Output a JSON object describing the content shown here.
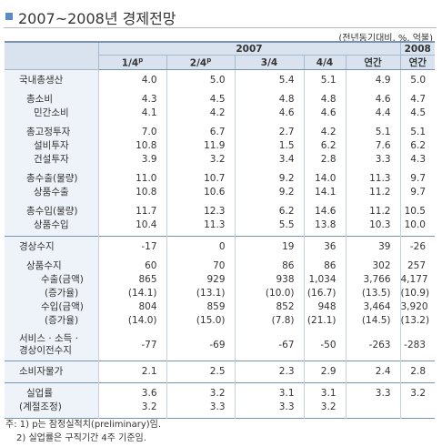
{
  "title": "2007~2008년 경제전망",
  "unit": "(전년동기대비, %, 억불)",
  "header": {
    "years": [
      "2007",
      "2008"
    ],
    "columns": [
      {
        "label": "1/4",
        "mark": "p"
      },
      {
        "label": "2/4",
        "mark": "p"
      },
      {
        "label": "3/4"
      },
      {
        "label": "4/4"
      },
      {
        "label": "연간"
      },
      {
        "label": "연간"
      }
    ]
  },
  "sections": [
    {
      "groups": [
        {
          "rows": [
            {
              "label": "국내총생산",
              "values": [
                "4.0",
                "5.0",
                "5.4",
                "5.1",
                "4.9",
                "5.0"
              ]
            }
          ]
        },
        {
          "rows": [
            {
              "label": "총소비",
              "values": [
                "4.3",
                "4.5",
                "4.8",
                "4.8",
                "4.6",
                "4.7"
              ]
            },
            {
              "label": "민간소비",
              "values": [
                "4.1",
                "4.2",
                "4.6",
                "4.6",
                "4.4",
                "4.5"
              ]
            }
          ]
        },
        {
          "rows": [
            {
              "label": "총고정투자",
              "values": [
                "7.0",
                "6.7",
                "2.7",
                "4.2",
                "5.1",
                "5.1"
              ]
            },
            {
              "label": "설비투자",
              "values": [
                "10.8",
                "11.9",
                "1.5",
                "6.2",
                "7.6",
                "6.2"
              ]
            },
            {
              "label": "건설투자",
              "values": [
                "3.9",
                "3.2",
                "3.4",
                "2.8",
                "3.3",
                "4.3"
              ]
            }
          ]
        },
        {
          "rows": [
            {
              "label": "총수출(물량)",
              "values": [
                "11.0",
                "10.7",
                "9.2",
                "14.0",
                "11.3",
                "9.7"
              ]
            },
            {
              "label": "상품수출",
              "values": [
                "10.8",
                "10.6",
                "9.2",
                "14.1",
                "11.2",
                "9.7"
              ]
            }
          ]
        },
        {
          "rows": [
            {
              "label": "총수입(물량)",
              "values": [
                "11.7",
                "12.3",
                "6.2",
                "14.6",
                "11.2",
                "10.5"
              ]
            },
            {
              "label": "상품수입",
              "values": [
                "10.4",
                "11.3",
                "5.5",
                "13.8",
                "10.3",
                "10.0"
              ]
            }
          ]
        }
      ]
    },
    {
      "groups": [
        {
          "rows": [
            {
              "label": "경상수지",
              "values": [
                "-17",
                "0",
                "19",
                "36",
                "39",
                "-26"
              ]
            }
          ]
        },
        {
          "rows": [
            {
              "label": "상품수지",
              "values": [
                "60",
                "70",
                "86",
                "86",
                "302",
                "257"
              ]
            },
            {
              "label": "수출(금액)",
              "values": [
                "865",
                "929",
                "938",
                "1,034",
                "3,766",
                "4,177"
              ]
            },
            {
              "label": "(증가율)",
              "values": [
                "(14.1)",
                "(13.1)",
                "(10.0)",
                "(16.7)",
                "(13.5)",
                "(10.9)"
              ]
            },
            {
              "label": "수입(금액)",
              "values": [
                "804",
                "859",
                "852",
                "948",
                "3,464",
                "3,920"
              ]
            },
            {
              "label": "(증가율)",
              "values": [
                "(14.0)",
                "(15.0)",
                "(7.8)",
                "(21.1)",
                "(14.5)",
                "(13.2)"
              ]
            }
          ]
        },
        {
          "rows": [
            {
              "label": "서비스 · 소득 ·\n경상이전수지",
              "values": [
                "-77",
                "-69",
                "-67",
                "-50",
                "-263",
                "-283"
              ]
            }
          ]
        }
      ]
    },
    {
      "groups": [
        {
          "rows": [
            {
              "label": "소비자물가",
              "values": [
                "2.1",
                "2.5",
                "2.3",
                "2.9",
                "2.4",
                "2.8"
              ]
            }
          ]
        }
      ]
    },
    {
      "groups": [
        {
          "rows": [
            {
              "label": "실업률",
              "values": [
                "3.6",
                "3.2",
                "3.1",
                "3.1",
                "3.3",
                "3.2"
              ]
            },
            {
              "label": "(계절조정)",
              "values": [
                "3.2",
                "3.3",
                "3.3",
                "3.2",
                null,
                null
              ]
            }
          ]
        }
      ]
    }
  ],
  "notes": [
    "주: 1) p는 잠정실적치(preliminary)임.",
    "2) 실업률은 구직기간 4주 기준임."
  ]
}
